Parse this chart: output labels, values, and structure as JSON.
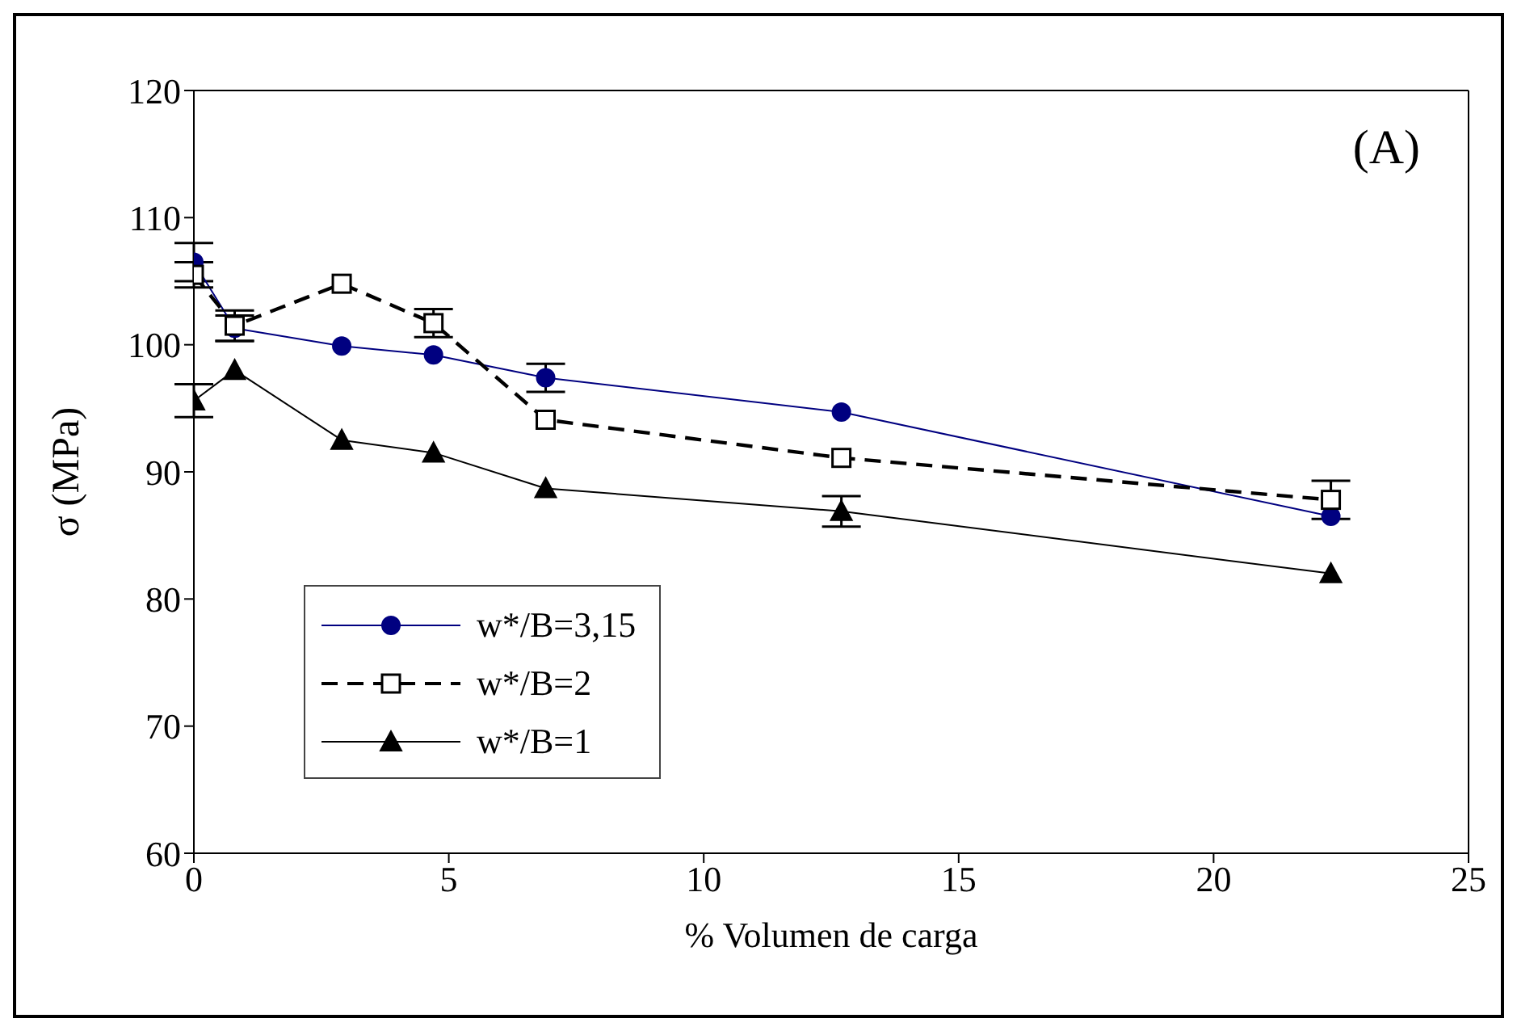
{
  "chart_data": {
    "type": "line",
    "xlabel": "% Volumen de carga",
    "ylabel": "σ (MPa)",
    "annotations": [
      "(A)"
    ],
    "x": [
      0,
      0.8,
      2.9,
      4.7,
      6.9,
      12.7,
      22.3
    ],
    "xlim": [
      0,
      25
    ],
    "xticks": [
      0,
      5,
      10,
      15,
      20,
      25
    ],
    "ylim": [
      60,
      120
    ],
    "yticks": [
      60,
      70,
      80,
      90,
      100,
      110,
      120
    ],
    "grid": false,
    "legend": "bottom left",
    "series": [
      {
        "name": "w*/B=3,15",
        "color": "#000080",
        "marker": "circle",
        "line_style": "solid",
        "values": [
          106.5,
          101.3,
          99.9,
          99.2,
          97.4,
          94.7,
          86.5
        ],
        "errors": [
          1.5,
          1,
          null,
          null,
          1.1,
          null,
          null
        ]
      },
      {
        "name": "w*/B=2",
        "color": "#000000",
        "marker": "square",
        "line_style": "dashed",
        "values": [
          105.5,
          101.5,
          104.8,
          101.7,
          94.1,
          91.1,
          87.8
        ],
        "errors": [
          1,
          1.2,
          null,
          1.1,
          null,
          null,
          1.5
        ]
      },
      {
        "name": "w*/B=1",
        "color": "#000000",
        "marker": "triangle",
        "line_style": "solid",
        "values": [
          95.6,
          98.0,
          92.5,
          91.5,
          88.7,
          86.9,
          82.0
        ],
        "errors": [
          1.3,
          null,
          null,
          null,
          null,
          1.2,
          null
        ]
      }
    ]
  }
}
